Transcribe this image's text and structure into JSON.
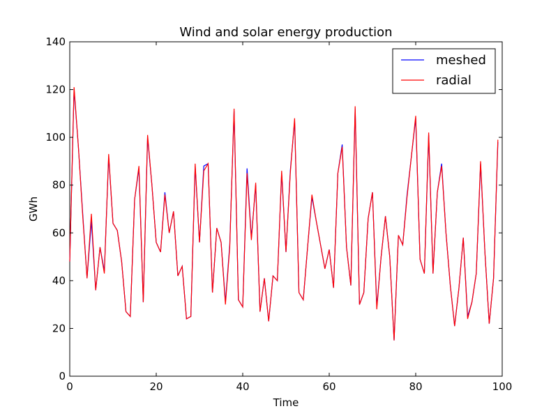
{
  "chart_data": {
    "type": "line",
    "title": "Wind and solar energy production",
    "xlabel": "Time",
    "ylabel": "GWh",
    "xlim": [
      0,
      100
    ],
    "ylim": [
      0,
      140
    ],
    "xticks": [
      0,
      20,
      40,
      60,
      80,
      100
    ],
    "yticks": [
      0,
      20,
      40,
      60,
      80,
      100,
      120,
      140
    ],
    "grid": false,
    "legend_position": "top-right",
    "x": [
      0,
      1,
      2,
      3,
      4,
      5,
      6,
      7,
      8,
      9,
      10,
      11,
      12,
      13,
      14,
      15,
      16,
      17,
      18,
      19,
      20,
      21,
      22,
      23,
      24,
      25,
      26,
      27,
      28,
      29,
      30,
      31,
      32,
      33,
      34,
      35,
      36,
      37,
      38,
      39,
      40,
      41,
      42,
      43,
      44,
      45,
      46,
      47,
      48,
      49,
      50,
      51,
      52,
      53,
      54,
      55,
      56,
      57,
      58,
      59,
      60,
      61,
      62,
      63,
      64,
      65,
      66,
      67,
      68,
      69,
      70,
      71,
      72,
      73,
      74,
      75,
      76,
      77,
      78,
      79,
      80,
      81,
      82,
      83,
      84,
      85,
      86,
      87,
      88,
      89,
      90,
      91,
      92,
      93,
      94,
      95,
      96,
      97,
      98,
      99
    ],
    "series": [
      {
        "name": "meshed",
        "color": "#0000ff",
        "values": [
          48,
          120,
          96,
          68,
          41,
          65,
          36,
          54,
          44,
          92,
          64,
          61,
          48,
          27,
          25,
          74,
          87,
          31,
          100,
          80,
          56,
          52,
          77,
          60,
          69,
          42,
          46,
          24,
          25,
          88,
          56,
          88,
          89,
          35,
          62,
          56,
          31,
          55,
          111,
          32,
          29,
          87,
          58,
          80,
          27,
          41,
          23,
          42,
          40,
          85,
          52,
          86,
          107,
          35,
          32,
          54,
          75,
          65,
          55,
          45,
          53,
          37,
          85,
          97,
          54,
          38,
          112,
          30,
          35,
          66,
          77,
          29,
          50,
          67,
          50,
          15,
          59,
          55,
          76,
          92,
          108,
          49,
          43,
          101,
          43,
          77,
          89,
          60,
          38,
          21,
          37,
          58,
          25,
          31,
          43,
          89,
          52,
          22,
          41,
          98
        ]
      },
      {
        "name": "radial",
        "color": "#ff0000",
        "values": [
          48,
          121,
          96,
          67,
          41,
          68,
          36,
          54,
          43,
          93,
          64,
          61,
          48,
          27,
          25,
          74,
          88,
          31,
          101,
          80,
          56,
          52,
          76,
          60,
          69,
          42,
          46,
          24,
          25,
          89,
          56,
          86,
          89,
          35,
          62,
          56,
          30,
          54,
          112,
          32,
          29,
          85,
          57,
          81,
          27,
          41,
          23,
          42,
          40,
          86,
          52,
          85,
          108,
          35,
          32,
          54,
          76,
          65,
          55,
          45,
          53,
          37,
          85,
          96,
          54,
          38,
          113,
          30,
          35,
          66,
          77,
          28,
          50,
          67,
          50,
          15,
          59,
          55,
          75,
          92,
          109,
          49,
          43,
          102,
          43,
          77,
          88,
          60,
          38,
          21,
          37,
          58,
          24,
          31,
          43,
          90,
          52,
          22,
          41,
          99
        ]
      }
    ]
  }
}
